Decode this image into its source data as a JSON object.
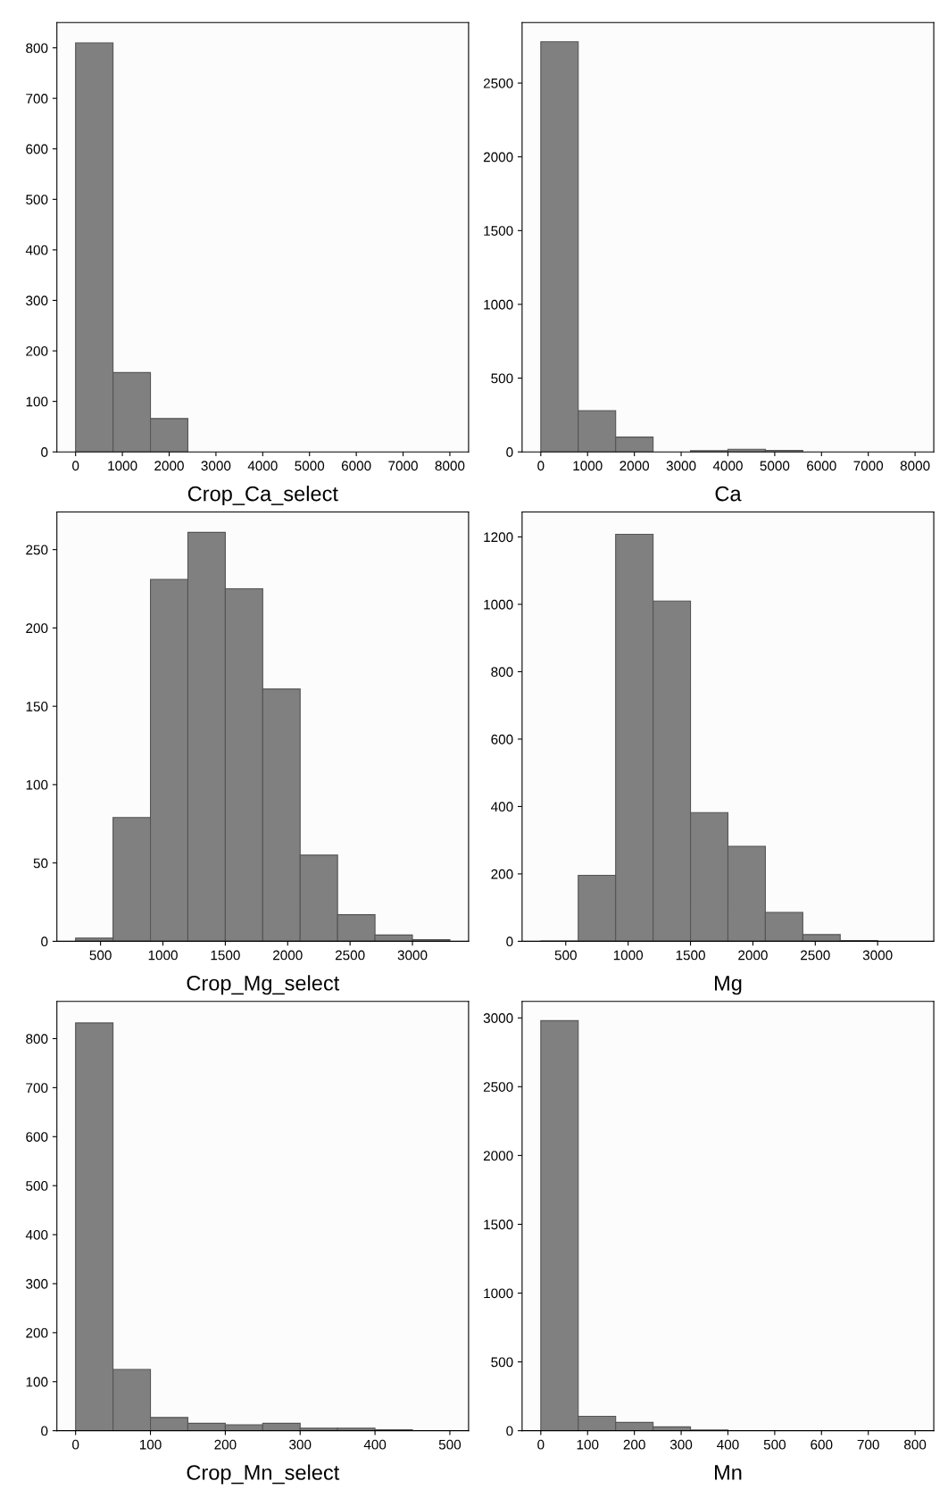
{
  "chart_data": [
    {
      "type": "histogram",
      "xlabel": "Crop_Ca_select",
      "bins": [
        0,
        800,
        1600,
        2400,
        3200,
        4000,
        4800,
        5600,
        6400,
        7200,
        8000
      ],
      "values": [
        810,
        157,
        66,
        0,
        0,
        0,
        0,
        0,
        0,
        0
      ],
      "color": "#808080",
      "xlim": [
        -400,
        8400
      ],
      "xticks": [
        0,
        1000,
        2000,
        3000,
        4000,
        5000,
        6000,
        7000,
        8000
      ],
      "ylim": [
        0,
        850
      ],
      "yticks": [
        0,
        100,
        200,
        300,
        400,
        500,
        600,
        700,
        800
      ],
      "grid": false
    },
    {
      "type": "histogram",
      "xlabel": "Ca",
      "bins": [
        0,
        800,
        1600,
        2400,
        3200,
        4000,
        4800,
        5600,
        6400,
        7200,
        8000
      ],
      "values": [
        2780,
        280,
        100,
        0,
        8,
        18,
        10,
        0,
        0,
        0
      ],
      "color": "#808080",
      "xlim": [
        -400,
        8400
      ],
      "xticks": [
        0,
        1000,
        2000,
        3000,
        4000,
        5000,
        6000,
        7000,
        8000
      ],
      "ylim": [
        0,
        2910
      ],
      "yticks": [
        0,
        500,
        1000,
        1500,
        2000,
        2500
      ],
      "grid": false
    },
    {
      "type": "histogram",
      "xlabel": "Crop_Mg_select",
      "bins": [
        300,
        600,
        900,
        1200,
        1500,
        1800,
        2100,
        2400,
        2700,
        3000,
        3300
      ],
      "values": [
        2,
        79,
        231,
        261,
        225,
        161,
        55,
        17,
        4,
        1
      ],
      "color": "#808080",
      "xlim": [
        150,
        3450
      ],
      "xticks": [
        500,
        1000,
        1500,
        2000,
        2500,
        3000
      ],
      "ylim": [
        0,
        274
      ],
      "yticks": [
        0,
        50,
        100,
        150,
        200,
        250
      ],
      "grid": false
    },
    {
      "type": "histogram",
      "xlabel": "Mg",
      "bins": [
        300,
        600,
        900,
        1200,
        1500,
        1800,
        2100,
        2400,
        2700,
        3000
      ],
      "values": [
        1,
        196,
        1208,
        1010,
        382,
        282,
        86,
        20,
        2
      ],
      "color": "#808080",
      "xlim": [
        150,
        3450
      ],
      "xticks": [
        500,
        1000,
        1500,
        2000,
        2500,
        3000
      ],
      "ylim": [
        0,
        1274
      ],
      "yticks": [
        0,
        200,
        400,
        600,
        800,
        1000,
        1200
      ],
      "grid": false
    },
    {
      "type": "histogram",
      "xlabel": "Crop_Mn_select",
      "bins": [
        0,
        50,
        100,
        150,
        200,
        250,
        300,
        350,
        400,
        450
      ],
      "values": [
        832,
        125,
        27,
        15,
        12,
        15,
        5,
        5,
        2
      ],
      "color": "#808080",
      "xlim": [
        -25,
        525
      ],
      "xticks": [
        0,
        100,
        200,
        300,
        400,
        500
      ],
      "ylim": [
        0,
        876
      ],
      "yticks": [
        0,
        100,
        200,
        300,
        400,
        500,
        600,
        700,
        800
      ],
      "grid": false
    },
    {
      "type": "histogram",
      "xlabel": "Mn",
      "bins": [
        0,
        80,
        160,
        240,
        320,
        400
      ],
      "values": [
        2980,
        105,
        60,
        28,
        5
      ],
      "color": "#808080",
      "xlim": [
        -40,
        840
      ],
      "xticks": [
        0,
        100,
        200,
        300,
        400,
        500,
        600,
        700,
        800
      ],
      "ylim": [
        0,
        3120
      ],
      "yticks": [
        0,
        500,
        1000,
        1500,
        2000,
        2500,
        3000
      ],
      "grid": false
    }
  ]
}
